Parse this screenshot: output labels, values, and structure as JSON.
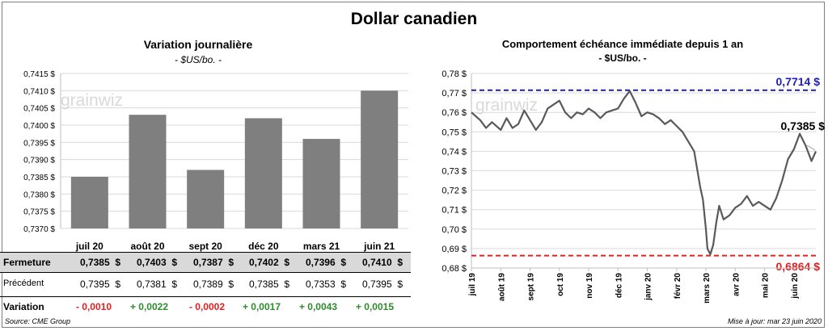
{
  "title": "Dollar canadien",
  "left": {
    "title": "Variation  journalière",
    "subtitle": "- $US/bo. -",
    "watermark": "grainwiz"
  },
  "right": {
    "title": "Comportement échéance immédiate depuis 1 an",
    "subtitle": "- $US/bo. -",
    "watermark": "grainwiz",
    "max_label": "0,7714 $",
    "min_label": "0,6864 $",
    "last_label": "0,7385 $"
  },
  "table": {
    "rows": [
      {
        "label": "Fermeture",
        "values": [
          "0,7385  $",
          "0,7403  $",
          "0,7387  $",
          "0,7402  $",
          "0,7396  $",
          "0,7410  $"
        ]
      },
      {
        "label": "Précédent",
        "values": [
          "0,7395  $",
          "0,7381  $",
          "0,7389  $",
          "0,7385  $",
          "0,7353  $",
          "0,7395  $"
        ]
      },
      {
        "label": "Variation",
        "values": [
          "- 0,0010",
          "+ 0,0022",
          "- 0,0002",
          "+ 0,0017",
          "+ 0,0043",
          "+ 0,0015"
        ],
        "signs": [
          "neg",
          "pos",
          "neg",
          "pos",
          "pos",
          "pos"
        ]
      }
    ]
  },
  "footer": {
    "source": "Source: CME Group",
    "updated": "Mise à jour: mar 23 juin 2020"
  },
  "colors": {
    "bar": "#7f7f7f",
    "line": "#595959",
    "max_line": "#1f1fb4",
    "min_line": "#e02020",
    "pos": "#2e8b2e",
    "neg": "#e02020"
  },
  "chart_data": [
    {
      "type": "bar",
      "title": "Variation  journalière",
      "subtitle": "- $US/bo. -",
      "categories": [
        "juil 20",
        "août 20",
        "sept 20",
        "déc 20",
        "mars 21",
        "juin 21"
      ],
      "values": [
        0.7385,
        0.7403,
        0.7387,
        0.7402,
        0.7396,
        0.741
      ],
      "ylim": [
        0.737,
        0.7415
      ],
      "yticks": [
        "0,7370 $",
        "0,7375 $",
        "0,7380 $",
        "0,7385 $",
        "0,7390 $",
        "0,7395 $",
        "0,7400 $",
        "0,7405 $",
        "0,7410 $",
        "0,7415 $"
      ],
      "grid": true
    },
    {
      "type": "line",
      "title": "Comportement échéance immédiate depuis 1 an",
      "subtitle": "- $US/bo. -",
      "xticks": [
        "juil 19",
        "août 19",
        "sept 19",
        "oct 19",
        "nov 19",
        "déc 19",
        "janv 20",
        "févr 20",
        "mars 20",
        "avr 20",
        "mai 20",
        "juin 20"
      ],
      "yticks": [
        "0,68 $",
        "0,69 $",
        "0,70 $",
        "0,71 $",
        "0,72 $",
        "0,73 $",
        "0,74 $",
        "0,75 $",
        "0,76 $",
        "0,77 $",
        "0,78 $"
      ],
      "ylim": [
        0.68,
        0.78
      ],
      "max": 0.7714,
      "min": 0.6864,
      "last": 0.7385,
      "x_months": [
        0,
        0.15,
        0.3,
        0.5,
        0.7,
        0.85,
        1.0,
        1.2,
        1.4,
        1.6,
        1.8,
        2.0,
        2.2,
        2.4,
        2.6,
        2.8,
        3.0,
        3.2,
        3.4,
        3.6,
        3.8,
        4.0,
        4.2,
        4.4,
        4.6,
        4.8,
        5.0,
        5.2,
        5.4,
        5.6,
        5.8,
        6.0,
        6.2,
        6.4,
        6.6,
        6.8,
        7.0,
        7.2,
        7.4,
        7.6,
        7.8,
        7.9,
        8.0,
        8.05,
        8.15,
        8.25,
        8.35,
        8.45,
        8.6,
        8.8,
        9.0,
        9.2,
        9.4,
        9.6,
        9.8,
        10.0,
        10.2,
        10.4,
        10.6,
        10.8,
        11.0,
        11.2,
        11.4,
        11.6,
        11.75
      ],
      "y": [
        0.76,
        0.758,
        0.756,
        0.752,
        0.755,
        0.753,
        0.751,
        0.757,
        0.752,
        0.754,
        0.761,
        0.756,
        0.751,
        0.755,
        0.762,
        0.764,
        0.766,
        0.76,
        0.757,
        0.76,
        0.759,
        0.762,
        0.76,
        0.757,
        0.76,
        0.761,
        0.762,
        0.767,
        0.771,
        0.765,
        0.758,
        0.76,
        0.759,
        0.757,
        0.754,
        0.756,
        0.753,
        0.75,
        0.745,
        0.74,
        0.722,
        0.715,
        0.7,
        0.69,
        0.687,
        0.692,
        0.703,
        0.712,
        0.705,
        0.707,
        0.711,
        0.713,
        0.717,
        0.712,
        0.714,
        0.712,
        0.71,
        0.716,
        0.725,
        0.736,
        0.741,
        0.749,
        0.743,
        0.735,
        0.74
      ]
    }
  ]
}
